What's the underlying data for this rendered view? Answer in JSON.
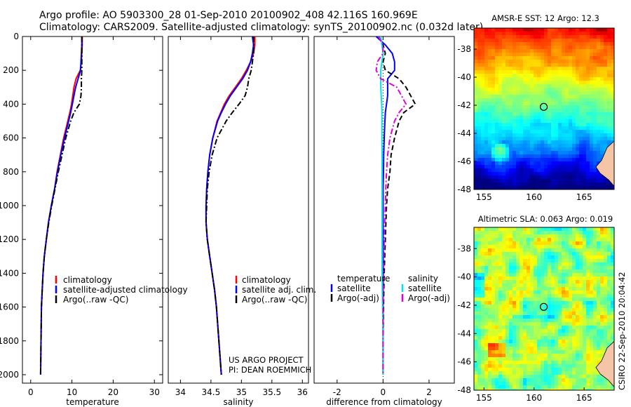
{
  "title": {
    "line1": "Argo profile: AO 5903300_28 01-Sep-2010 20100902_408 42.116S 160.969E",
    "line2": "Climatology: CARS2009. Satellite-adjusted climatology: synTS_20100902.nc (0.032d later)"
  },
  "credit": "CSIRO 22-Sep-2010 20:04:42",
  "project": {
    "line1": "US ARGO PROJECT",
    "line2": "PI: DEAN ROEMMICH"
  },
  "colors": {
    "red": "#ff0000",
    "blue": "#0000ff",
    "black": "#000000",
    "cyan": "#00e5e5",
    "magenta": "#e000e0"
  },
  "chart_data": [
    {
      "type": "line",
      "id": "temperature",
      "xlabel": "temperature",
      "ylabel": "",
      "xlim": [
        -2,
        32
      ],
      "ylim": [
        2050,
        0
      ],
      "xticks": [
        0,
        10,
        20,
        30
      ],
      "yticks": [
        0,
        200,
        400,
        600,
        800,
        1000,
        1200,
        1400,
        1600,
        1800,
        2000
      ],
      "legend": [
        "climatology",
        "satellite-adjusted climatology",
        "Argo(..raw -QC)"
      ],
      "legend_position": "lower-middle",
      "depth": [
        0,
        50,
        100,
        150,
        200,
        250,
        300,
        350,
        400,
        450,
        500,
        600,
        700,
        800,
        900,
        1000,
        1100,
        1200,
        1300,
        1400,
        1500,
        1600,
        1800,
        2000
      ],
      "series": [
        {
          "name": "climatology",
          "color": "red",
          "dash": "solid",
          "values": [
            12.5,
            12.5,
            12.4,
            12.3,
            12.0,
            11.0,
            10.5,
            10.2,
            9.9,
            9.5,
            9.0,
            8.0,
            7.2,
            6.4,
            5.8,
            5.0,
            4.3,
            3.8,
            3.3,
            3.0,
            2.8,
            2.6,
            2.5,
            2.4
          ]
        },
        {
          "name": "satellite-adjusted climatology",
          "color": "blue",
          "dash": "solid",
          "values": [
            12.4,
            12.4,
            12.3,
            12.2,
            12.1,
            11.5,
            10.9,
            10.5,
            10.1,
            9.7,
            9.2,
            8.2,
            7.3,
            6.5,
            5.8,
            5.0,
            4.3,
            3.8,
            3.3,
            3.0,
            2.8,
            2.6,
            2.5,
            2.4
          ]
        },
        {
          "name": "Argo(..raw -QC)",
          "color": "black",
          "dash": "dashdot",
          "values": [
            12.4,
            12.4,
            12.4,
            12.4,
            12.4,
            12.3,
            12.3,
            12.2,
            11.8,
            10.5,
            9.7,
            8.5,
            7.6,
            6.7,
            5.9,
            5.1,
            4.4,
            3.8,
            3.3,
            3.0,
            2.8,
            2.6,
            2.5,
            2.4
          ]
        }
      ]
    },
    {
      "type": "line",
      "id": "salinity",
      "xlabel": "salinity",
      "ylabel": "",
      "xlim": [
        33.8,
        36.1
      ],
      "ylim": [
        2050,
        0
      ],
      "xticks": [
        34,
        34.5,
        35,
        35.5,
        36
      ],
      "yticks": [],
      "legend": [
        "climatology",
        "satellite adj. clim.",
        "Argo(..raw -QC)"
      ],
      "legend_position": "lower-middle",
      "depth": [
        0,
        50,
        100,
        150,
        200,
        250,
        300,
        350,
        400,
        450,
        500,
        600,
        700,
        800,
        900,
        1000,
        1100,
        1200,
        1300,
        1400,
        1500,
        1600,
        1800,
        2000
      ],
      "series": [
        {
          "name": "climatology",
          "color": "red",
          "dash": "solid",
          "values": [
            35.22,
            35.22,
            35.2,
            35.15,
            35.08,
            35.0,
            34.9,
            34.8,
            34.72,
            34.66,
            34.6,
            34.53,
            34.48,
            34.45,
            34.43,
            34.42,
            34.42,
            34.44,
            34.48,
            34.52,
            34.56,
            34.59,
            34.63,
            34.67
          ]
        },
        {
          "name": "satellite adj. clim.",
          "color": "blue",
          "dash": "solid",
          "values": [
            35.18,
            35.2,
            35.18,
            35.15,
            35.1,
            35.02,
            34.92,
            34.82,
            34.74,
            34.67,
            34.61,
            34.53,
            34.48,
            34.45,
            34.43,
            34.42,
            34.42,
            34.44,
            34.48,
            34.52,
            34.56,
            34.59,
            34.63,
            34.67
          ]
        },
        {
          "name": "Argo(..raw -QC)",
          "color": "black",
          "dash": "dashdot",
          "values": [
            35.2,
            35.2,
            35.2,
            35.18,
            35.16,
            35.12,
            35.1,
            35.06,
            34.96,
            34.85,
            34.75,
            34.6,
            34.52,
            34.47,
            34.44,
            34.43,
            34.42,
            34.44,
            34.48,
            34.52,
            34.56,
            34.59,
            34.63,
            34.67
          ]
        }
      ]
    },
    {
      "type": "line",
      "id": "difference",
      "xlabel": "difference from climatology",
      "ylabel": "",
      "xlim": [
        -3,
        3.1
      ],
      "ylim": [
        2050,
        0
      ],
      "xticks": [
        -2,
        0,
        2
      ],
      "yticks": [],
      "legend": [
        "temperature",
        "satellite",
        "Argo(-adj)",
        "salinity",
        "satellite",
        "Argo(-adj)"
      ],
      "legend_position": "lower",
      "depth": [
        0,
        50,
        100,
        150,
        200,
        250,
        300,
        350,
        400,
        450,
        500,
        600,
        700,
        800,
        900,
        1000,
        1200,
        1400,
        1600,
        1800,
        2000
      ],
      "series": [
        {
          "name": "temperature satellite",
          "color": "blue",
          "dash": "solid",
          "values": [
            -0.3,
            0.1,
            0.4,
            0.5,
            0.5,
            0.2,
            0.2,
            0.2,
            0.15,
            0.1,
            0.08,
            0.05,
            0.03,
            0.02,
            0.0,
            0.0,
            0.0,
            0.0,
            0.0,
            0.0,
            0.0
          ]
        },
        {
          "name": "temperature Argo(-adj)",
          "color": "black",
          "dash": "dashed",
          "values": [
            -0.2,
            0.0,
            0.1,
            0.0,
            0.1,
            0.7,
            1.0,
            1.2,
            1.4,
            0.9,
            0.7,
            0.5,
            0.35,
            0.3,
            0.2,
            0.15,
            0.1,
            0.05,
            0.02,
            0.0,
            0.0
          ]
        },
        {
          "name": "salinity satellite",
          "color": "cyan",
          "dash": "solid",
          "values": [
            -0.1,
            -0.05,
            0.0,
            -0.05,
            -0.1,
            -0.1,
            -0.1,
            -0.08,
            -0.06,
            -0.05,
            -0.05,
            -0.05,
            -0.04,
            -0.04,
            -0.04,
            -0.04,
            -0.04,
            -0.04,
            -0.02,
            0.0,
            0.0
          ]
        },
        {
          "name": "salinity Argo(-adj)",
          "color": "magenta",
          "dash": "dashdot",
          "values": [
            -0.2,
            0.0,
            0.0,
            -0.25,
            -0.3,
            -0.1,
            0.6,
            0.8,
            1.0,
            0.7,
            0.5,
            0.3,
            0.2,
            0.15,
            0.12,
            0.1,
            0.05,
            0.02,
            0.0,
            0.0,
            0.0
          ]
        }
      ]
    },
    {
      "type": "heatmap",
      "id": "sst_map",
      "title": "AMSR-E SST: 12  Argo: 12.3",
      "xlim": [
        154,
        168
      ],
      "ylim": [
        -48,
        -36.5
      ],
      "xticks": [
        155,
        160,
        165
      ],
      "yticks": [
        -38,
        -40,
        -42,
        -44,
        -46,
        -48
      ],
      "marker": {
        "lon": 160.969,
        "lat": -42.116
      }
    },
    {
      "type": "heatmap",
      "id": "sla_map",
      "title": "Altimetric SLA: 0.063  Argo: 0.019",
      "xlim": [
        154,
        168
      ],
      "ylim": [
        -48,
        -36.5
      ],
      "xticks": [
        155,
        160,
        165
      ],
      "yticks": [
        -38,
        -40,
        -42,
        -44,
        -46,
        -48
      ],
      "marker": {
        "lon": 160.969,
        "lat": -42.116
      }
    }
  ]
}
